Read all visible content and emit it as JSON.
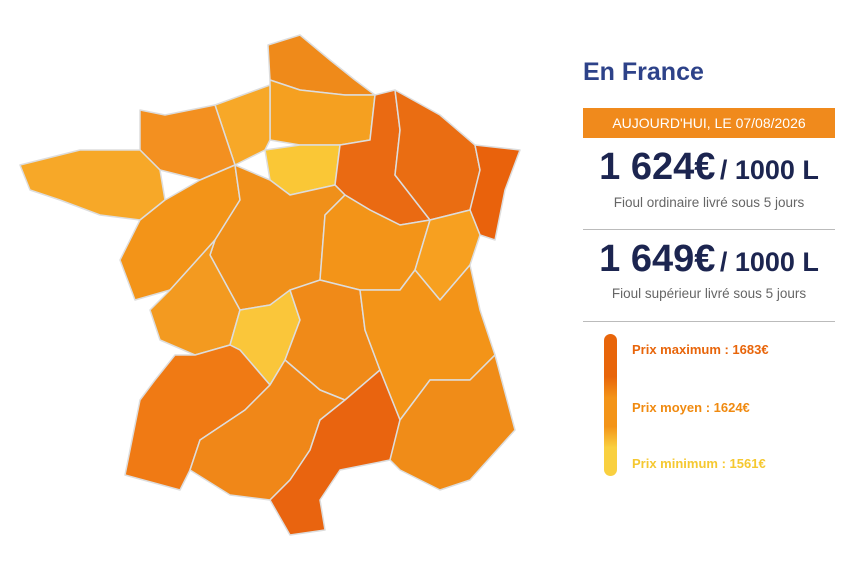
{
  "title": "En France",
  "date_badge": "AUJOURD'HUI, LE 07/08/2026",
  "prices": [
    {
      "amount": "1 624€",
      "unit": "/ 1000 L",
      "caption": "Fioul ordinaire livré sous 5 jours"
    },
    {
      "amount": "1 649€",
      "unit": "/ 1000 L",
      "caption": "Fioul supérieur livré sous 5 jours"
    }
  ],
  "legend": [
    {
      "label": "Prix maximum : 1683€"
    },
    {
      "label": "Prix moyen : 1624€"
    },
    {
      "label": "Prix minimum : 1561€"
    }
  ]
}
